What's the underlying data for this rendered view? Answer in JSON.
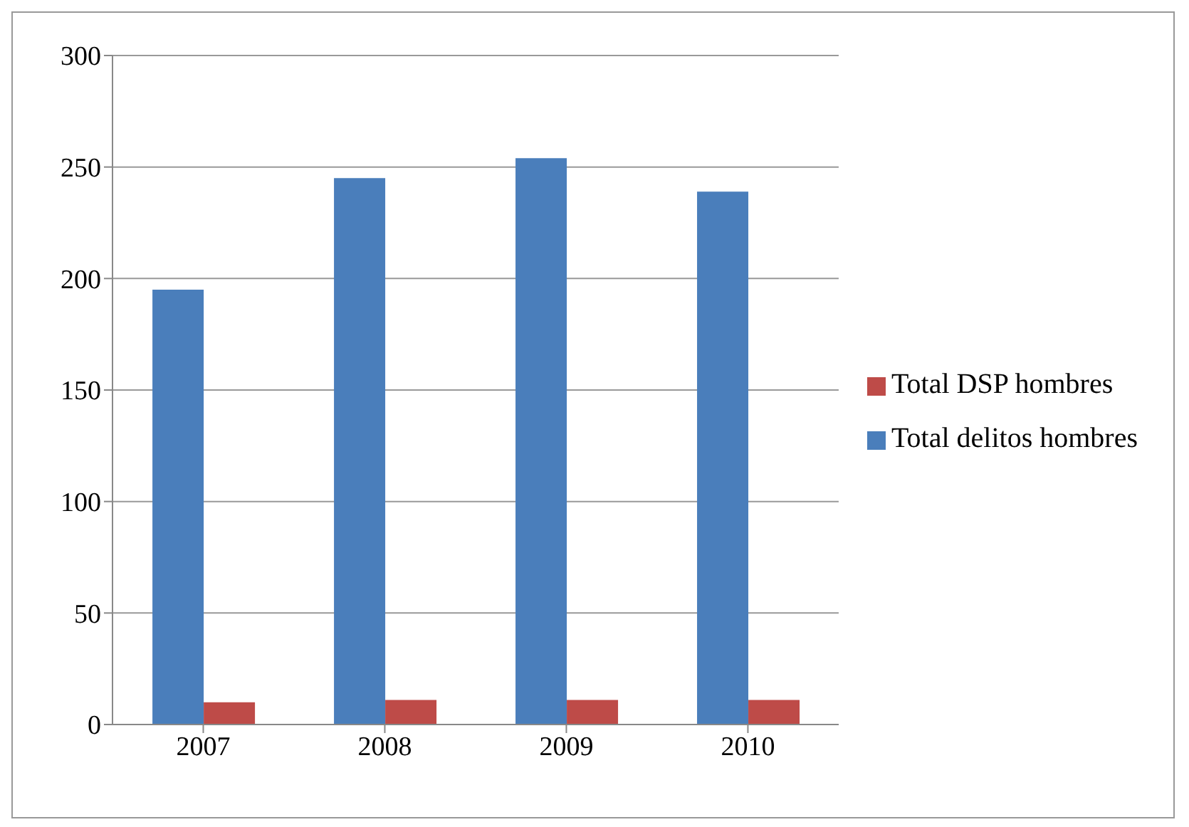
{
  "chart_data": {
    "type": "bar",
    "categories": [
      "2007",
      "2008",
      "2009",
      "2010"
    ],
    "series": [
      {
        "name": "Total delitos hombres",
        "color": "#4a7ebb",
        "values": [
          195,
          245,
          254,
          239
        ]
      },
      {
        "name": "Total DSP hombres",
        "color": "#be4b48",
        "values": [
          10,
          11,
          11,
          11
        ]
      }
    ],
    "ylim": [
      0,
      300
    ],
    "yticks": [
      0,
      50,
      100,
      150,
      200,
      250,
      300
    ],
    "grid": "y",
    "legend": "right"
  }
}
